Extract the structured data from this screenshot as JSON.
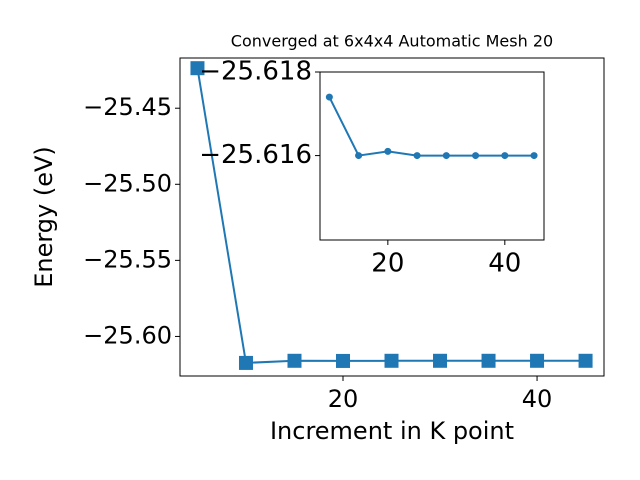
{
  "chart_data": [
    {
      "type": "line",
      "title": "Converged at 6x4x4 Automatic Mesh 20",
      "x_label": "Increment in K point",
      "y_label": "Energy (eV)",
      "x": [
        5,
        10,
        15,
        20,
        25,
        30,
        35,
        40,
        45
      ],
      "series": [
        {
          "color": "#1f77b4",
          "marker": "square",
          "values": [
            -25.4237,
            -25.6174,
            -25.616,
            -25.6161,
            -25.616,
            -25.616,
            -25.616,
            -25.616,
            -25.616
          ]
        }
      ],
      "xlim": [
        3.2,
        46.9
      ],
      "xticks": [
        20,
        40
      ],
      "ylim": [
        -25.626,
        -25.417
      ],
      "yticks": [
        {
          "value": -25.6,
          "label": "−25.60"
        },
        {
          "value": -25.55,
          "label": "−25.55"
        },
        {
          "value": -25.5,
          "label": "−25.50"
        },
        {
          "value": -25.45,
          "label": "−25.45"
        }
      ]
    },
    {
      "type": "line",
      "x": [
        10,
        15,
        20,
        25,
        30,
        35,
        40,
        45
      ],
      "series": [
        {
          "color": "#1f77b4",
          "marker": "circle",
          "values": [
            -25.6174,
            -25.616,
            -25.6161,
            -25.616,
            -25.616,
            -25.616,
            -25.616,
            -25.616
          ]
        }
      ],
      "xlim": [
        8.4,
        46.7
      ],
      "xticks": [
        20,
        40
      ],
      "ylim": [
        -25.61398,
        -25.618
      ],
      "y_inverted": true,
      "yticks": [
        {
          "value": -25.618,
          "label": "−25.618"
        },
        {
          "value": -25.616,
          "label": "−25.616"
        }
      ]
    }
  ]
}
